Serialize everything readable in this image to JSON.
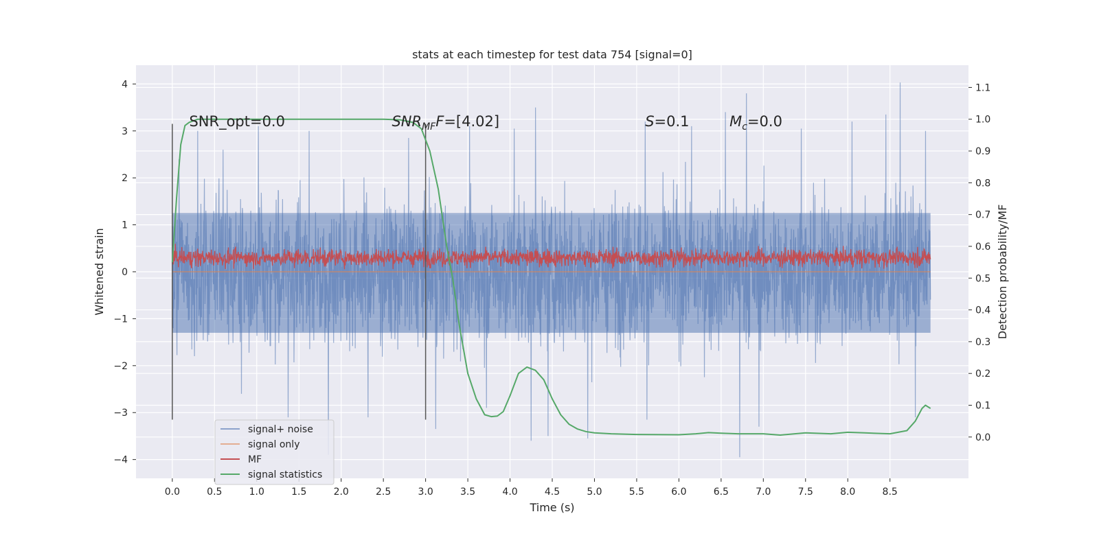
{
  "chart_data": {
    "type": "line",
    "title": "stats at each timestep for test data 754 [signal=0]",
    "xlabel": "Time (s)",
    "ylabel_left": "Whitened strain",
    "ylabel_right": "Detection probability/MF",
    "xlim": [
      -0.43,
      9.43
    ],
    "ylim_left": [
      -4.4,
      4.4
    ],
    "ylim_right": [
      -0.13,
      1.17
    ],
    "x_ticks": [
      0.0,
      0.5,
      1.0,
      1.5,
      2.0,
      2.5,
      3.0,
      3.5,
      4.0,
      4.5,
      5.0,
      5.5,
      6.0,
      6.5,
      7.0,
      7.5,
      8.0,
      8.5
    ],
    "x_tick_labels": [
      "0.0",
      "0.5",
      "1.0",
      "1.5",
      "2.0",
      "2.5",
      "3.0",
      "3.5",
      "4.0",
      "4.5",
      "5.0",
      "5.5",
      "6.0",
      "6.5",
      "7.0",
      "7.5",
      "8.0",
      "8.5"
    ],
    "y_ticks_left": [
      -4,
      -3,
      -2,
      -1,
      0,
      1,
      2,
      3,
      4
    ],
    "y_tick_labels_left": [
      "−4",
      "−3",
      "−2",
      "−1",
      "0",
      "1",
      "2",
      "3",
      "4"
    ],
    "y_ticks_right": [
      0.0,
      0.1,
      0.2,
      0.3,
      0.4,
      0.5,
      0.6,
      0.7,
      0.8,
      0.9,
      1.0,
      1.1
    ],
    "y_tick_labels_right": [
      "0.0",
      "0.1",
      "0.2",
      "0.3",
      "0.4",
      "0.5",
      "0.6",
      "0.7",
      "0.8",
      "0.9",
      "1.0",
      "1.1"
    ],
    "grid": true,
    "legend_position": "lower-left",
    "legend": [
      {
        "label": "signal+ noise",
        "color": "#4c72b0"
      },
      {
        "label": "signal only",
        "color": "#dd8452"
      },
      {
        "label": "MF",
        "color": "#c44e52"
      },
      {
        "label": "signal statistics",
        "color": "#55a868"
      }
    ],
    "annotations": {
      "snr_opt": "SNR_opt=0.0",
      "snr_mf_italic": "SNR",
      "snr_mf_sub": "MF",
      "snr_mf_rest": "=[4.02]",
      "s_italic": "S",
      "s_rest": "=0.1",
      "mc_italic": "M",
      "mc_sub": "c",
      "mc_rest": "=0.0"
    },
    "vertical_lines": [
      {
        "x": 0.0,
        "ymin": -3.15,
        "ymax": 3.15
      },
      {
        "x": 3.0,
        "ymin": -3.15,
        "ymax": 3.15
      }
    ],
    "series": [
      {
        "name": "signal+ noise",
        "axis": "left",
        "color": "#4c72b0",
        "x_range": [
          0.0,
          8.98
        ],
        "core_range": [
          -1.3,
          1.25
        ],
        "max_abs": 4.03,
        "spikes": [
          [
            0.08,
            2.4
          ],
          [
            0.3,
            3.0
          ],
          [
            0.6,
            2.6
          ],
          [
            0.82,
            -2.6
          ],
          [
            1.02,
            3.1
          ],
          [
            1.37,
            -3.1
          ],
          [
            1.62,
            3.0
          ],
          [
            1.85,
            -3.9
          ],
          [
            2.32,
            -3.1
          ],
          [
            2.8,
            2.85
          ],
          [
            3.12,
            -3.35
          ],
          [
            3.52,
            3.1
          ],
          [
            3.72,
            -2.9
          ],
          [
            4.05,
            3.05
          ],
          [
            4.25,
            -3.6
          ],
          [
            4.3,
            3.5
          ],
          [
            4.45,
            -3.5
          ],
          [
            4.92,
            -3.55
          ],
          [
            5.6,
            3.2
          ],
          [
            5.62,
            -3.15
          ],
          [
            6.15,
            3.1
          ],
          [
            6.55,
            3.4
          ],
          [
            6.72,
            -3.95
          ],
          [
            6.8,
            3.8
          ],
          [
            6.95,
            -3.3
          ],
          [
            7.45,
            3.05
          ],
          [
            8.05,
            3.2
          ],
          [
            8.45,
            3.35
          ],
          [
            8.62,
            4.03
          ],
          [
            8.8,
            -3.1
          ],
          [
            8.92,
            3.0
          ]
        ]
      },
      {
        "name": "signal only",
        "axis": "left",
        "color": "#dd8452",
        "x": [
          0.0,
          8.98
        ],
        "y": [
          0.0,
          0.0
        ]
      },
      {
        "name": "MF",
        "axis": "left",
        "color": "#c44e52",
        "x_range": [
          0.0,
          8.98
        ],
        "baseline": 0.3,
        "peak": 1.0
      },
      {
        "name": "signal statistics",
        "axis": "right",
        "color": "#55a868",
        "x": [
          0.0,
          0.05,
          0.1,
          0.15,
          0.2,
          0.3,
          0.5,
          1.0,
          2.0,
          2.5,
          2.7,
          2.85,
          2.95,
          3.05,
          3.15,
          3.25,
          3.32,
          3.4,
          3.5,
          3.6,
          3.7,
          3.78,
          3.85,
          3.92,
          4.0,
          4.1,
          4.2,
          4.3,
          4.4,
          4.5,
          4.6,
          4.7,
          4.8,
          4.9,
          5.0,
          5.2,
          5.5,
          6.0,
          6.2,
          6.35,
          6.5,
          6.7,
          7.0,
          7.2,
          7.5,
          7.8,
          8.0,
          8.2,
          8.5,
          8.7,
          8.8,
          8.88,
          8.92,
          8.98
        ],
        "y": [
          0.55,
          0.75,
          0.92,
          0.98,
          0.99,
          1.0,
          1.0,
          1.0,
          1.0,
          1.0,
          0.998,
          0.99,
          0.97,
          0.9,
          0.78,
          0.6,
          0.5,
          0.35,
          0.2,
          0.12,
          0.07,
          0.064,
          0.066,
          0.08,
          0.13,
          0.2,
          0.22,
          0.21,
          0.18,
          0.12,
          0.07,
          0.04,
          0.025,
          0.017,
          0.013,
          0.01,
          0.008,
          0.007,
          0.01,
          0.014,
          0.012,
          0.01,
          0.01,
          0.006,
          0.013,
          0.01,
          0.015,
          0.013,
          0.01,
          0.02,
          0.05,
          0.09,
          0.1,
          0.09
        ]
      }
    ]
  }
}
